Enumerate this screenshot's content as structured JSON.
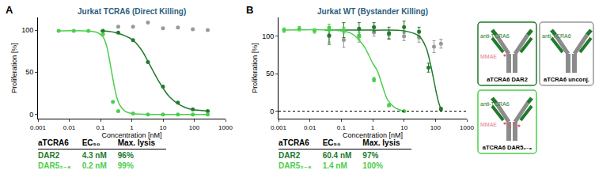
{
  "chart_data": [
    {
      "type": "scatter",
      "panel_label": "A",
      "title": "Jurkat TCRA6 (Direct Killing)",
      "x_label": "Concentration [nM]",
      "y_label": "Proliferation [%]",
      "log": "x",
      "xlim": [
        0.001,
        1000
      ],
      "xticks": [
        0.001,
        0.01,
        0.1,
        1,
        10,
        100,
        1000
      ],
      "ylim": [
        -5,
        115
      ],
      "yticks": [
        0,
        50,
        100
      ],
      "grid": false,
      "marker": "circle",
      "series": [
        {
          "color": "#999999",
          "x": [
            0.37,
            1.1,
            3.3,
            10,
            30,
            90,
            270
          ],
          "values": [
            104,
            104,
            109,
            102,
            103,
            101,
            100
          ]
        },
        {
          "color": "#217a2c",
          "x": [
            0.12,
            0.37,
            1.1,
            3.3,
            10,
            30,
            90,
            270
          ],
          "values": [
            99,
            97,
            88,
            62,
            33,
            14,
            6,
            4
          ],
          "fit": {
            "x": [
              0.1,
              0.3,
              1,
              2,
              4,
              8,
              16,
              32,
              64,
              128,
              270
            ],
            "values": [
              99,
              97,
              89,
              77,
              57,
              37,
              21,
              12,
              7,
              5,
              4
            ]
          }
        },
        {
          "color": "#4cce4c",
          "x": [
            0.0046,
            0.014,
            0.041,
            0.12,
            0.25,
            0.37,
            1.1,
            3.3,
            10,
            30,
            90,
            270
          ],
          "values": [
            99,
            99,
            99,
            95,
            15,
            4,
            1,
            0,
            0,
            0,
            0,
            0
          ],
          "fit": {
            "x": [
              0.004,
              0.03,
              0.08,
              0.12,
              0.16,
              0.2,
              0.25,
              0.3,
              0.4,
              0.6,
              1,
              10,
              270
            ],
            "values": [
              99,
              99,
              97,
              92,
              80,
              62,
              42,
              27,
              12,
              4,
              1,
              0,
              0
            ]
          }
        }
      ]
    },
    {
      "type": "scatter",
      "panel_label": "B",
      "title": "Jurkat WT (Bystander Killing)",
      "x_label": "Concentration [nM]",
      "y_label": "Proliferation [%]",
      "log": "x",
      "xlim": [
        0.001,
        1000
      ],
      "xticks": [
        0.001,
        0.01,
        0.1,
        1,
        10,
        100,
        1000
      ],
      "ylim": [
        -10,
        125
      ],
      "yticks": [
        0,
        50,
        100
      ],
      "grid": false,
      "marker": "circle",
      "reference_lines": [
        {
          "y": 0,
          "line_style": "dotted"
        }
      ],
      "series": [
        {
          "color": "#999999",
          "x": [
            0.041,
            0.12,
            0.37,
            1.1,
            3.3,
            10,
            30,
            90,
            150
          ],
          "values": [
            100,
            95,
            100,
            105,
            102,
            100,
            98,
            86,
            90
          ],
          "errors": [
            8,
            10,
            8,
            5,
            5,
            6,
            6,
            8,
            6
          ]
        },
        {
          "color": "#217a2c",
          "x": [
            0.041,
            0.12,
            0.37,
            1.1,
            3.3,
            10,
            30,
            60,
            150
          ],
          "values": [
            101,
            108,
            110,
            112,
            104,
            112,
            106,
            58,
            3
          ],
          "errors": [
            12,
            10,
            8,
            6,
            8,
            8,
            6,
            6,
            2
          ],
          "fit": {
            "x": [
              0.03,
              1,
              10,
              30,
              50,
              70,
              90,
              110,
              130,
              150
            ],
            "values": [
              108,
              108,
              107,
              100,
              85,
              62,
              40,
              22,
              10,
              3
            ]
          }
        },
        {
          "color": "#4cce4c",
          "x": [
            0.0015,
            0.0046,
            0.014,
            0.041,
            0.12,
            0.37,
            1.1,
            3.3,
            10
          ],
          "values": [
            108,
            110,
            107,
            111,
            108,
            100,
            42,
            8,
            0
          ],
          "errors": [
            3,
            3,
            3,
            5,
            4,
            5,
            3,
            2,
            1
          ],
          "fit": {
            "x": [
              0.0015,
              0.05,
              0.2,
              0.5,
              1,
              1.4,
              2,
              3,
              5,
              10
            ],
            "values": [
              108,
              108,
              104,
              88,
              64,
              54,
              35,
              15,
              5,
              0
            ]
          }
        }
      ]
    }
  ],
  "tables": [
    {
      "panel": "A",
      "columns": [
        "aTCRA6",
        "EC₅₀",
        "Max. lysis"
      ],
      "rows": [
        {
          "color": "#217a2c",
          "cells": [
            "DAR2",
            "4.3 nM",
            "96%"
          ]
        },
        {
          "color": "#4cce4c",
          "cells": [
            "DAR5₂₋₈",
            "0.2 nM",
            "99%"
          ]
        }
      ]
    },
    {
      "panel": "B",
      "columns": [
        "aTCRA6",
        "EC₅₀",
        "Max. lysis"
      ],
      "rows": [
        {
          "color": "#217a2c",
          "cells": [
            "DAR2",
            "60.4 nM",
            "97%"
          ]
        },
        {
          "color": "#4cce4c",
          "cells": [
            "DAR5₂₋₈",
            "1.4 nM",
            "100%"
          ]
        }
      ]
    }
  ],
  "key": [
    {
      "label": "aTCRA6 DAR2",
      "antibody": "anti-TCRA6",
      "drug": "MMAE",
      "color": "#217a2c"
    },
    {
      "label": "aTCRA6 unconj.",
      "antibody": "anti-TCRA6",
      "color": "#999999"
    },
    {
      "label": "aTCRA6 DAR5₂₋₈",
      "antibody": "anti-TCRA6",
      "drug": "MMAE",
      "color": "#4cce4c"
    }
  ]
}
